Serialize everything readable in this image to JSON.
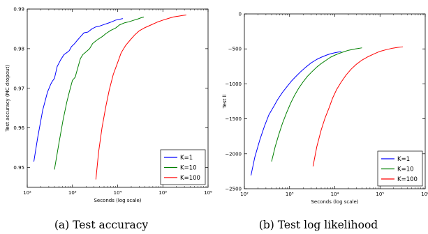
{
  "captions": [
    "(a) Test accuracy",
    "(b) Test log likelihood"
  ],
  "chart_data": [
    {
      "type": "line",
      "title": "",
      "xlabel": "Seconds (log scale)",
      "ylabel": "Test accuracy (MC dropout)",
      "xscale": "log",
      "xlim": [
        100,
        1000000
      ],
      "ylim": [
        0.945,
        0.99
      ],
      "xtick_labels": [
        "10²",
        "10³",
        "10⁴",
        "10⁵",
        "10⁶"
      ],
      "xtick_values": [
        100,
        1000,
        10000,
        100000,
        1000000
      ],
      "ytick_labels": [
        "0.95",
        "0.96",
        "0.97",
        "0.98",
        "0.99"
      ],
      "ytick_values": [
        0.95,
        0.96,
        0.97,
        0.98,
        0.99
      ],
      "legend_position": "bottom-right",
      "grid": false,
      "series": [
        {
          "name": "K=1",
          "color": "#0000ff",
          "x": [
            140,
            170,
            220,
            280,
            330,
            360,
            400,
            460,
            550,
            650,
            750,
            850,
            950,
            1100,
            1300,
            1500,
            1800,
            2200,
            2700,
            3300,
            4000,
            5000,
            6000,
            7500,
            9000,
            11000,
            13000
          ],
          "y": [
            0.9515,
            0.9575,
            0.9645,
            0.969,
            0.971,
            0.9718,
            0.9725,
            0.9755,
            0.9772,
            0.9785,
            0.979,
            0.9795,
            0.9805,
            0.9812,
            0.9822,
            0.983,
            0.984,
            0.9842,
            0.985,
            0.9855,
            0.9857,
            0.9861,
            0.9864,
            0.9868,
            0.9872,
            0.9874,
            0.9876
          ]
        },
        {
          "name": "K=10",
          "color": "#008000",
          "x": [
            400,
            500,
            620,
            750,
            850,
            1000,
            1150,
            1300,
            1500,
            1700,
            2000,
            2400,
            2800,
            3500,
            4500,
            5500,
            7000,
            9000,
            11000,
            14000,
            18000,
            23000,
            28000,
            33000,
            38000
          ],
          "y": [
            0.9495,
            0.956,
            0.962,
            0.9665,
            0.969,
            0.972,
            0.9728,
            0.975,
            0.9775,
            0.9785,
            0.9792,
            0.98,
            0.9813,
            0.9822,
            0.983,
            0.9838,
            0.9846,
            0.9852,
            0.986,
            0.9865,
            0.9868,
            0.9872,
            0.9875,
            0.9878,
            0.988
          ]
        },
        {
          "name": "K=100",
          "color": "#ff0000",
          "x": [
            3300,
            3800,
            4500,
            5500,
            6500,
            8000,
            10000,
            12000,
            15000,
            19000,
            24000,
            30000,
            40000,
            55000,
            75000,
            100000,
            130000,
            170000,
            220000,
            280000,
            330000
          ],
          "y": [
            0.947,
            0.954,
            0.96,
            0.9655,
            0.9695,
            0.9735,
            0.9765,
            0.979,
            0.9808,
            0.9822,
            0.9835,
            0.9845,
            0.9853,
            0.986,
            0.9867,
            0.9872,
            0.9876,
            0.988,
            0.9882,
            0.9884,
            0.9885
          ]
        }
      ]
    },
    {
      "type": "line",
      "title": "",
      "xlabel": "Seconds (log scale)",
      "ylabel": "Test ll",
      "xscale": "log",
      "xlim": [
        100,
        1000000
      ],
      "ylim": [
        -2500,
        0
      ],
      "xtick_labels": [
        "10²",
        "10³",
        "10⁴",
        "10⁵",
        "10⁶"
      ],
      "xtick_values": [
        100,
        1000,
        10000,
        100000,
        1000000
      ],
      "ytick_labels": [
        "0",
        "−500",
        "−1000",
        "−1500",
        "−2000",
        "−2500"
      ],
      "ytick_values": [
        0,
        -500,
        -1000,
        -1500,
        -2000,
        -2500
      ],
      "legend_position": "bottom-right",
      "grid": false,
      "series": [
        {
          "name": "K=1",
          "color": "#0000ff",
          "x": [
            140,
            170,
            220,
            280,
            350,
            450,
            550,
            700,
            900,
            1100,
            1400,
            1800,
            2300,
            3000,
            4000,
            5000,
            6500,
            8000,
            10000,
            12000,
            14000
          ],
          "y": [
            -2310,
            -2050,
            -1800,
            -1600,
            -1440,
            -1320,
            -1220,
            -1120,
            -1030,
            -960,
            -890,
            -820,
            -760,
            -700,
            -650,
            -620,
            -590,
            -570,
            -555,
            -545,
            -540
          ]
        },
        {
          "name": "K=10",
          "color": "#008000",
          "x": [
            400,
            480,
            580,
            700,
            850,
            1050,
            1300,
            1600,
            2000,
            2500,
            3200,
            4000,
            5000,
            6500,
            8000,
            10000,
            13000,
            16000,
            20000,
            26000,
            32000,
            40000
          ],
          "y": [
            -2110,
            -1900,
            -1720,
            -1560,
            -1420,
            -1280,
            -1160,
            -1060,
            -970,
            -890,
            -820,
            -760,
            -710,
            -660,
            -620,
            -590,
            -560,
            -540,
            -520,
            -505,
            -495,
            -485
          ]
        },
        {
          "name": "K=100",
          "color": "#ff0000",
          "x": [
            3300,
            4000,
            5000,
            6000,
            7500,
            9000,
            11000,
            14000,
            18000,
            23000,
            30000,
            40000,
            55000,
            75000,
            100000,
            140000,
            190000,
            250000,
            320000
          ],
          "y": [
            -2180,
            -1900,
            -1660,
            -1500,
            -1340,
            -1200,
            -1080,
            -970,
            -870,
            -790,
            -720,
            -660,
            -610,
            -570,
            -535,
            -510,
            -490,
            -478,
            -470
          ]
        }
      ]
    }
  ]
}
